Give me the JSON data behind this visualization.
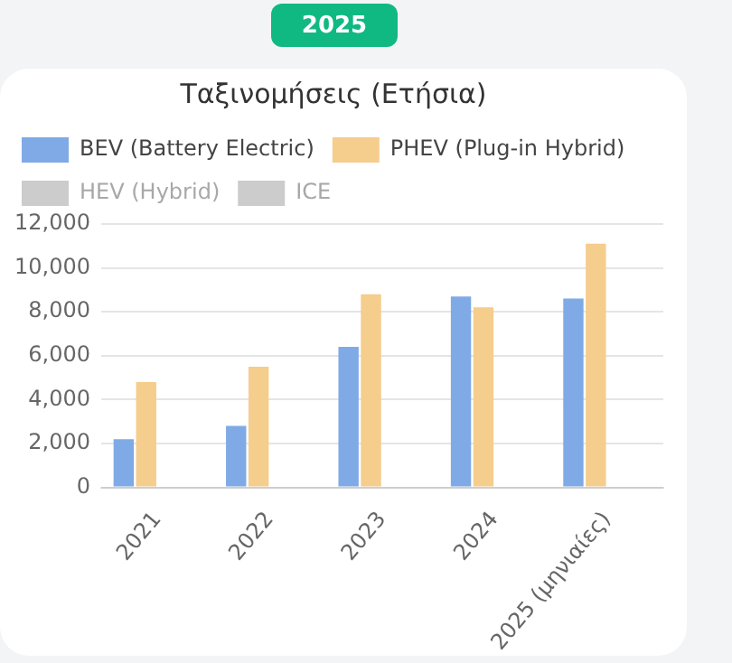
{
  "chart_data": {
    "type": "bar",
    "title": "Ταξινομήσεις (Ετήσια)",
    "annotations": [
      "2025"
    ],
    "categories": [
      "2021",
      "2022",
      "2023",
      "2024",
      "2025 (μηνιαίες)"
    ],
    "series": [
      {
        "name": "BEV (Battery Electric)",
        "color": "#7faae6",
        "values": [
          2200,
          2800,
          6400,
          8700,
          8600
        ]
      },
      {
        "name": "PHEV (Plug-in Hybrid)",
        "color": "#f5cd8c",
        "values": [
          4800,
          5500,
          8800,
          8200,
          11100
        ]
      },
      {
        "name": "HEV (Hybrid)",
        "color": "#cccccc",
        "values": [
          null,
          null,
          null,
          null,
          null
        ]
      },
      {
        "name": "ICE",
        "color": "#cccccc",
        "values": [
          null,
          null,
          null,
          null,
          null
        ]
      }
    ],
    "ylim": [
      0,
      12000
    ],
    "yticks": [
      0,
      {
        "value": 2000,
        "label": "2,000"
      },
      {
        "value": 4000,
        "label": "4,000"
      },
      {
        "value": 6000,
        "label": "6,000"
      },
      {
        "value": 8000,
        "label": "8,000"
      },
      {
        "value": 10000,
        "label": "10,000"
      },
      {
        "value": 12000,
        "label": "12,000"
      }
    ],
    "grid": "y",
    "legend": "top"
  }
}
